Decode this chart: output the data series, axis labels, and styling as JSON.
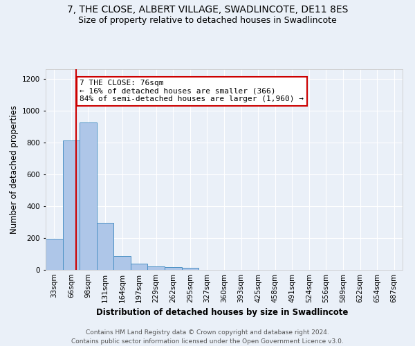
{
  "title": "7, THE CLOSE, ALBERT VILLAGE, SWADLINCOTE, DE11 8ES",
  "subtitle": "Size of property relative to detached houses in Swadlincote",
  "xlabel": "Distribution of detached houses by size in Swadlincote",
  "ylabel": "Number of detached properties",
  "bar_values": [
    196,
    812,
    924,
    295,
    88,
    38,
    20,
    17,
    12,
    0,
    0,
    0,
    0,
    0,
    0,
    0,
    0,
    0,
    0,
    0,
    0
  ],
  "bar_labels": [
    "33sqm",
    "66sqm",
    "98sqm",
    "131sqm",
    "164sqm",
    "197sqm",
    "229sqm",
    "262sqm",
    "295sqm",
    "327sqm",
    "360sqm",
    "393sqm",
    "425sqm",
    "458sqm",
    "491sqm",
    "524sqm",
    "556sqm",
    "589sqm",
    "622sqm",
    "654sqm",
    "687sqm"
  ],
  "bar_color": "#aec6e8",
  "bar_edge_color": "#4a90c4",
  "bar_width": 1.0,
  "vline_pos": 1.3,
  "vline_color": "#cc0000",
  "annotation_text": "7 THE CLOSE: 76sqm\n← 16% of detached houses are smaller (366)\n84% of semi-detached houses are larger (1,960) →",
  "annotation_box_color": "#ffffff",
  "annotation_box_edge_color": "#cc0000",
  "ylim": [
    0,
    1260
  ],
  "yticks": [
    0,
    200,
    400,
    600,
    800,
    1000,
    1200
  ],
  "bg_color": "#eaf0f8",
  "grid_color": "#ffffff",
  "footer_line1": "Contains HM Land Registry data © Crown copyright and database right 2024.",
  "footer_line2": "Contains public sector information licensed under the Open Government Licence v3.0.",
  "title_fontsize": 10,
  "subtitle_fontsize": 9,
  "axis_label_fontsize": 8.5,
  "tick_fontsize": 7.5,
  "annotation_fontsize": 8,
  "footer_fontsize": 6.5
}
